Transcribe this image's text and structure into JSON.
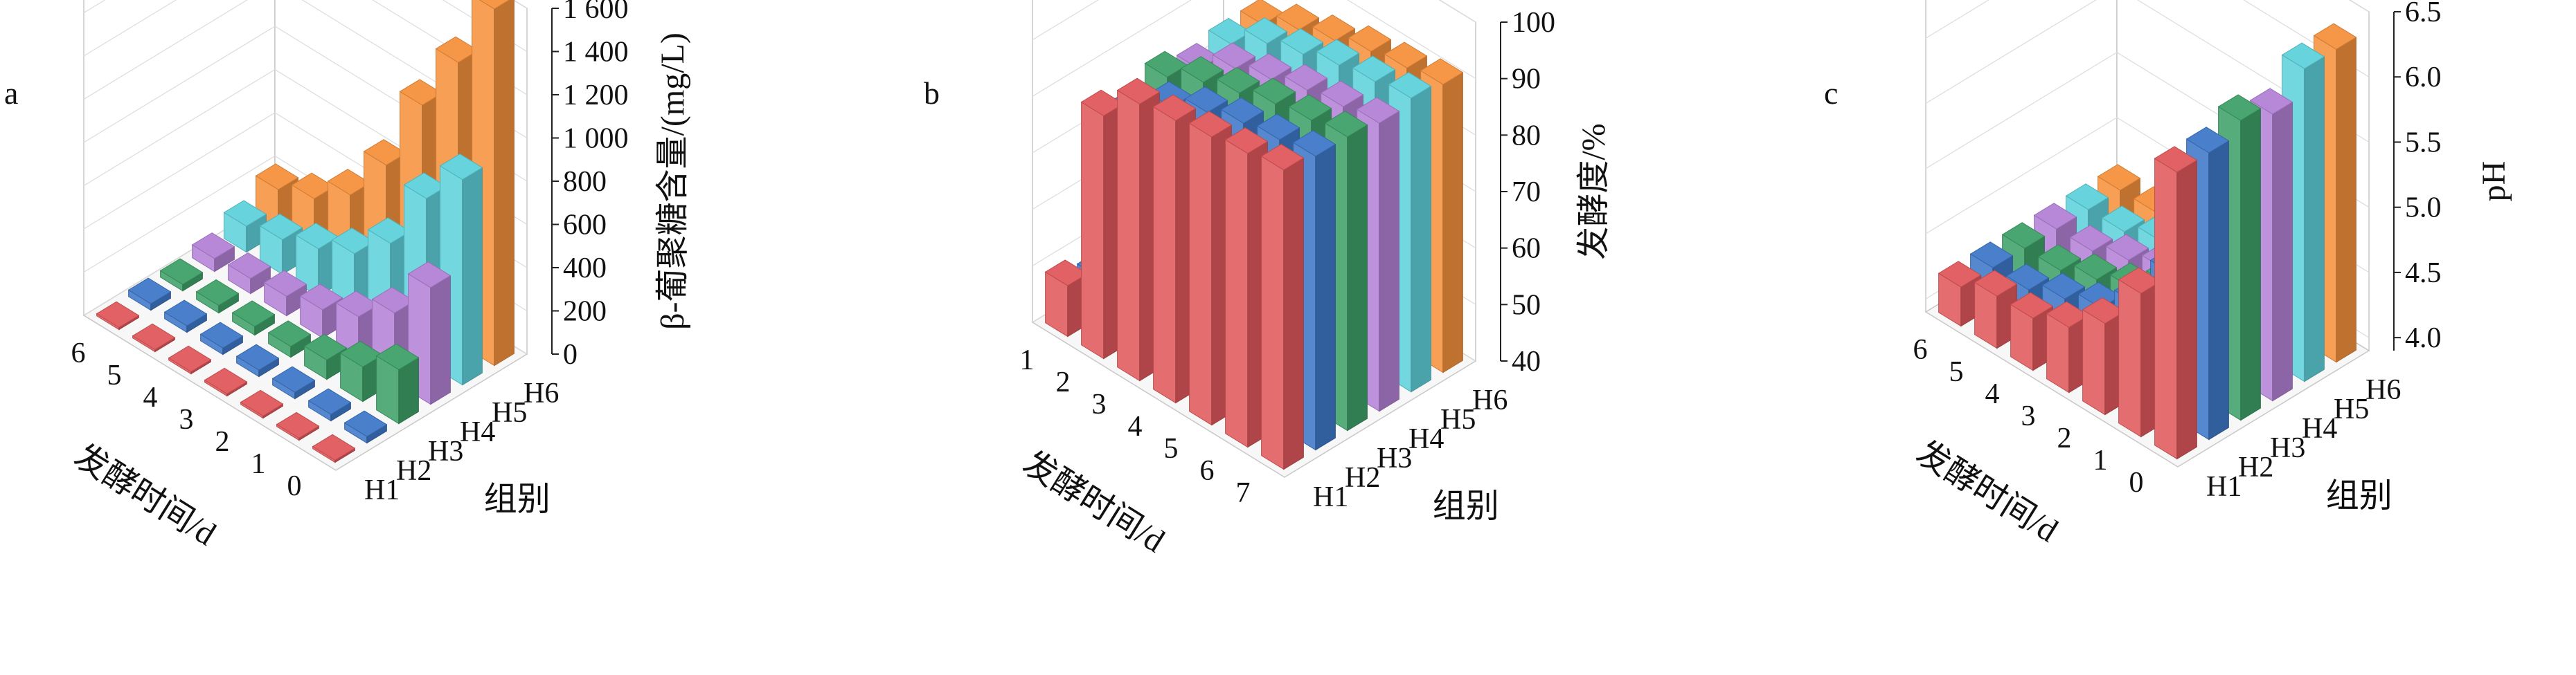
{
  "chart_data": [
    {
      "panel": "a",
      "type": "bar3d",
      "zlabel": "β-葡聚糖含量/(mg/L)",
      "xlabel": "发酵时间/d",
      "ylabel": "组别",
      "x_ticks": [
        "0",
        "1",
        "2",
        "3",
        "4",
        "5",
        "6"
      ],
      "y_ticks": [
        "H1",
        "H2",
        "H3",
        "H4",
        "H5",
        "H6"
      ],
      "z_ticks": [
        "0",
        "200",
        "400",
        "600",
        "800",
        "1 000",
        "1 200",
        "1 400",
        "1 600"
      ],
      "zlim": [
        0,
        1600
      ],
      "series": [
        {
          "name": "H1",
          "color": "#e0595c",
          "values": [
            10,
            10,
            10,
            10,
            10,
            10,
            10
          ]
        },
        {
          "name": "H2",
          "color": "#3f78c8",
          "values": [
            30,
            30,
            30,
            30,
            30,
            30,
            30
          ]
        },
        {
          "name": "H3",
          "color": "#3fa169",
          "values": [
            250,
            160,
            90,
            50,
            40,
            35,
            30
          ]
        },
        {
          "name": "H4",
          "color": "#b482d6",
          "values": [
            540,
            320,
            200,
            130,
            90,
            70,
            60
          ]
        },
        {
          "name": "H5",
          "color": "#5fd1da",
          "values": [
            950,
            760,
            450,
            300,
            220,
            160,
            120
          ]
        },
        {
          "name": "H6",
          "color": "#f5923e",
          "values": [
            1650,
            1300,
            1000,
            620,
            380,
            260,
            200
          ]
        }
      ]
    },
    {
      "panel": "b",
      "type": "bar3d",
      "zlabel": "发酵度/%",
      "xlabel": "发酵时间/d",
      "ylabel": "组别",
      "x_ticks": [
        "1",
        "2",
        "3",
        "4",
        "5",
        "6",
        "7"
      ],
      "y_ticks": [
        "H1",
        "H2",
        "H3",
        "H4",
        "H5",
        "H6"
      ],
      "z_ticks": [
        "40",
        "50",
        "60",
        "70",
        "80",
        "90",
        "100"
      ],
      "zlim": [
        40,
        100
      ],
      "series": [
        {
          "name": "H1",
          "color": "#e0595c",
          "values": [
            49,
            83,
            89,
            90,
            91,
            92,
            93
          ]
        },
        {
          "name": "H2",
          "color": "#3f78c8",
          "values": [
            47,
            80,
            85,
            88,
            90,
            91,
            92
          ]
        },
        {
          "name": "H3",
          "color": "#3fa169",
          "values": [
            43,
            83,
            86,
            88,
            90,
            91,
            92
          ]
        },
        {
          "name": "H4",
          "color": "#b482d6",
          "values": [
            44,
            81,
            85,
            87,
            89,
            90,
            91
          ]
        },
        {
          "name": "H5",
          "color": "#5fd1da",
          "values": [
            45,
            82,
            86,
            88,
            90,
            91,
            92
          ]
        },
        {
          "name": "H6",
          "color": "#f5923e",
          "values": [
            46,
            82,
            85,
            87,
            89,
            90,
            91
          ]
        }
      ]
    },
    {
      "panel": "c",
      "type": "bar3d",
      "zlabel": "pH",
      "xlabel": "发酵时间/d",
      "ylabel": "组别",
      "x_ticks": [
        "0",
        "1",
        "2",
        "3",
        "4",
        "5",
        "6"
      ],
      "y_ticks": [
        "H1",
        "H2",
        "H3",
        "H4",
        "H5",
        "H6"
      ],
      "z_ticks": [
        "4.0",
        "4.5",
        "5.0",
        "5.5",
        "6.0",
        "6.5"
      ],
      "zlim": [
        3.9,
        6.5
      ],
      "series": [
        {
          "name": "H1",
          "color": "#e0595c",
          "values": [
            6.1,
            5.0,
            4.6,
            4.4,
            4.3,
            4.3,
            4.2
          ]
        },
        {
          "name": "H2",
          "color": "#3f78c8",
          "values": [
            6.1,
            5.0,
            4.6,
            4.4,
            4.3,
            4.2,
            4.2
          ]
        },
        {
          "name": "H3",
          "color": "#3fa169",
          "values": [
            6.2,
            5.0,
            4.6,
            4.4,
            4.3,
            4.2,
            4.2
          ]
        },
        {
          "name": "H4",
          "color": "#b482d6",
          "values": [
            6.1,
            5.1,
            4.6,
            4.4,
            4.3,
            4.2,
            4.2
          ]
        },
        {
          "name": "H5",
          "color": "#5fd1da",
          "values": [
            6.3,
            5.2,
            4.6,
            4.4,
            4.3,
            4.2,
            4.2
          ]
        },
        {
          "name": "H6",
          "color": "#f5923e",
          "values": [
            6.3,
            5.2,
            4.5,
            4.4,
            4.3,
            4.2,
            4.2
          ]
        }
      ]
    }
  ]
}
